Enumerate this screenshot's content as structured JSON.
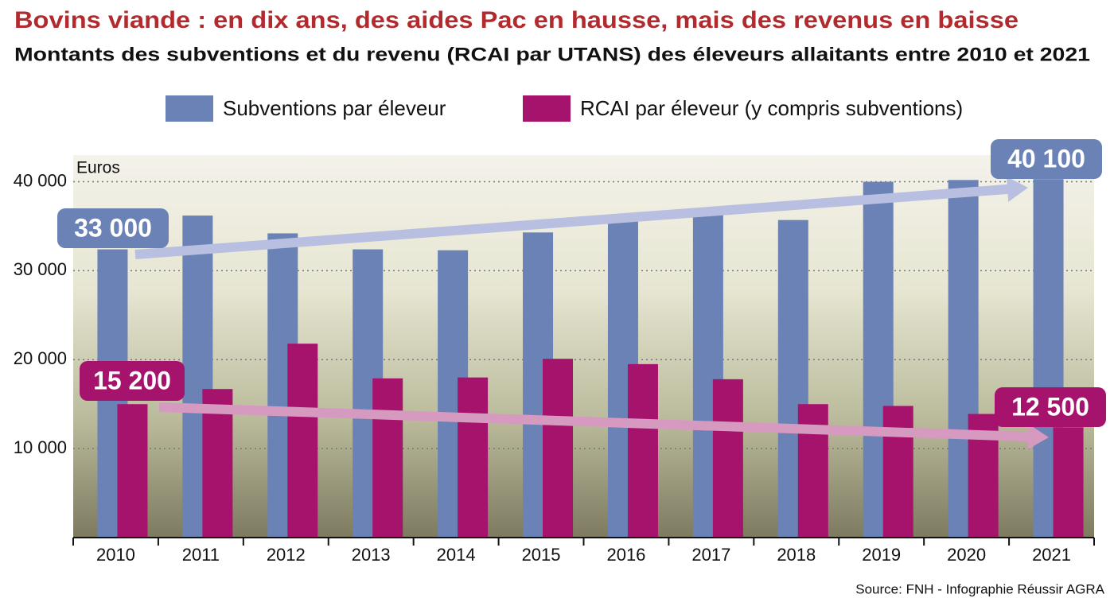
{
  "chart_data": {
    "type": "bar",
    "title": "Bovins viande : en dix ans, des aides Pac en hausse, mais des revenus en baisse",
    "subtitle": "Montants des subventions et du revenu (RCAI par UTANS) des éleveurs allaitants entre 2010 et 2021",
    "y_label": "Euros",
    "categories": [
      "2010",
      "2011",
      "2012",
      "2013",
      "2014",
      "2015",
      "2016",
      "2017",
      "2018",
      "2019",
      "2020",
      "2021"
    ],
    "series": [
      {
        "name": "Subventions par éleveur",
        "color": "#6a82b5",
        "values": [
          32400,
          36200,
          34200,
          32400,
          32300,
          34300,
          35900,
          36400,
          35700,
          40000,
          40200,
          40300
        ]
      },
      {
        "name": "RCAI par éleveur (y compris subventions)",
        "color": "#a6136c",
        "values": [
          15000,
          16700,
          21800,
          17900,
          18000,
          20100,
          19500,
          17800,
          15000,
          14800,
          13900,
          12400
        ]
      }
    ],
    "ylim": [
      0,
      43000
    ],
    "yticks": [
      {
        "value": 10000,
        "label": "10 000"
      },
      {
        "value": 20000,
        "label": "20 000"
      },
      {
        "value": 30000,
        "label": "30 000"
      },
      {
        "value": 40000,
        "label": "40 000"
      }
    ],
    "grid": true,
    "annotations": [
      "33 000",
      "40 100",
      "15 200",
      "12 500"
    ],
    "source": "Source: FNH - Infographie Réussir AGRA"
  }
}
